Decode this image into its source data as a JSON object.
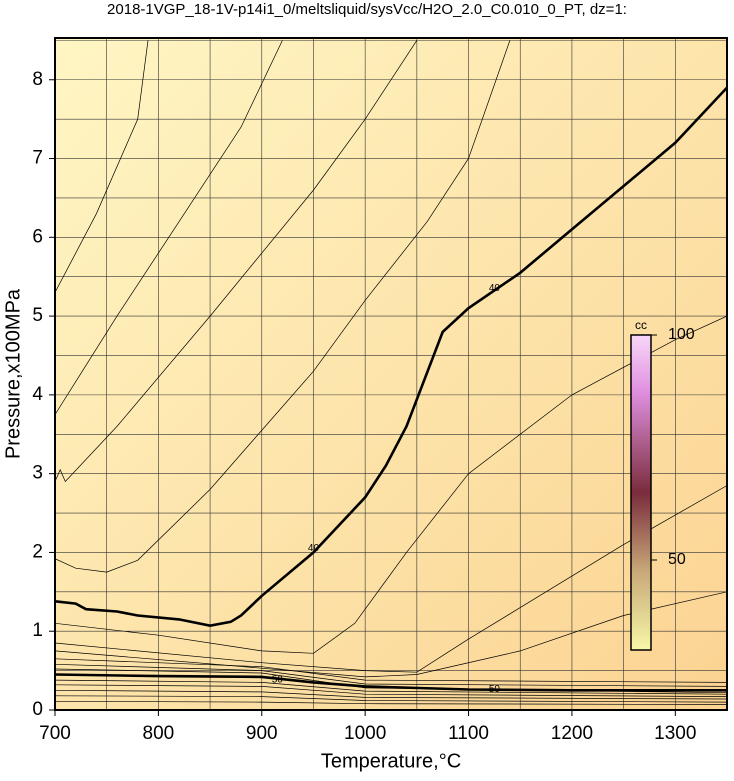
{
  "chart_data": {
    "type": "contour",
    "title": "2018-1VGP_18-1V-p14i1_0/meltsliquid/sysVcc/H2O_2.0_C0.010_0_PT, dz=1:",
    "x_label": "Temperature,°C",
    "y_label": "Pressure,x100MPa",
    "xlim": [
      700,
      1350
    ],
    "ylim": [
      0,
      8.53
    ],
    "xticks": [
      700,
      800,
      900,
      1000,
      1100,
      1200,
      1300
    ],
    "yticks": [
      0,
      1,
      2,
      3,
      4,
      5,
      6,
      7,
      8
    ],
    "x_grid": [
      700,
      750,
      800,
      850,
      900,
      950,
      1000,
      1050,
      1100,
      1150,
      1200,
      1250,
      1300,
      1350
    ],
    "y_grid": [
      0,
      0.5,
      1,
      1.5,
      2,
      2.5,
      3,
      3.5,
      4,
      4.5,
      5,
      5.5,
      6,
      6.5,
      7,
      7.5,
      8,
      8.5
    ],
    "grid": true,
    "contours": [
      {
        "x": [
          700,
          720,
          730,
          760,
          780,
          820,
          850,
          870,
          880,
          900,
          950,
          1000,
          1020,
          1040,
          1075,
          1100,
          1150,
          1200,
          1300,
          1350
        ],
        "y": [
          1.38,
          1.35,
          1.28,
          1.25,
          1.2,
          1.15,
          1.07,
          1.12,
          1.2,
          1.45,
          2.0,
          2.7,
          3.1,
          3.6,
          4.8,
          5.1,
          5.55,
          6.1,
          7.2,
          7.9
        ],
        "bold": true
      },
      {
        "x": [
          700,
          800,
          900,
          950,
          1000,
          1100,
          1200,
          1350
        ],
        "y": [
          0.45,
          0.43,
          0.42,
          0.35,
          0.3,
          0.26,
          0.25,
          0.25
        ],
        "bold": true
      },
      {
        "x": [
          700,
          740,
          780,
          790
        ],
        "y": [
          5.3,
          6.3,
          7.5,
          8.5
        ],
        "bold": false
      },
      {
        "x": [
          700,
          760,
          820,
          880,
          920
        ],
        "y": [
          3.75,
          5.0,
          6.2,
          7.4,
          8.5
        ],
        "bold": false
      },
      {
        "x": [
          700,
          705,
          710,
          760,
          850,
          950,
          1000,
          1050
        ],
        "y": [
          2.9,
          3.05,
          2.9,
          3.6,
          5.0,
          6.6,
          7.5,
          8.5
        ],
        "bold": false
      },
      {
        "x": [
          700,
          720,
          750,
          780,
          850,
          950,
          1000,
          1060,
          1100,
          1140
        ],
        "y": [
          1.92,
          1.8,
          1.75,
          1.9,
          2.8,
          4.3,
          5.2,
          6.2,
          7.0,
          8.5
        ],
        "bold": false
      },
      {
        "x": [
          700,
          800,
          900,
          950,
          990,
          1040,
          1100,
          1200,
          1300,
          1350
        ],
        "y": [
          1.1,
          0.95,
          0.75,
          0.72,
          1.1,
          2.0,
          3.0,
          4.0,
          4.7,
          5.0
        ],
        "bold": false
      },
      {
        "x": [
          700,
          900,
          1000,
          1050,
          1100,
          1150,
          1250,
          1350
        ],
        "y": [
          0.85,
          0.6,
          0.5,
          0.48,
          0.9,
          1.3,
          2.1,
          2.85
        ],
        "bold": false
      },
      {
        "x": [
          700,
          1000,
          1050,
          1150,
          1250,
          1350
        ],
        "y": [
          0.75,
          0.42,
          0.45,
          0.75,
          1.2,
          1.5
        ],
        "bold": false
      },
      {
        "x": [
          700,
          900,
          1000,
          1350
        ],
        "y": [
          0.65,
          0.55,
          0.38,
          0.35
        ],
        "bold": false
      },
      {
        "x": [
          700,
          900,
          1000,
          1350
        ],
        "y": [
          0.58,
          0.5,
          0.33,
          0.3
        ],
        "bold": false
      },
      {
        "x": [
          700,
          900,
          1000,
          1350
        ],
        "y": [
          0.52,
          0.47,
          0.28,
          0.22
        ],
        "bold": false
      },
      {
        "x": [
          700,
          900,
          1000,
          1350
        ],
        "y": [
          0.38,
          0.35,
          0.24,
          0.2
        ],
        "bold": false
      },
      {
        "x": [
          700,
          900,
          1000,
          1350
        ],
        "y": [
          0.32,
          0.3,
          0.2,
          0.17
        ],
        "bold": false
      },
      {
        "x": [
          700,
          900,
          1000,
          1350
        ],
        "y": [
          0.25,
          0.23,
          0.16,
          0.14
        ],
        "bold": false
      },
      {
        "x": [
          700,
          900,
          1000,
          1350
        ],
        "y": [
          0.18,
          0.17,
          0.12,
          0.1
        ],
        "bold": false
      },
      {
        "x": [
          700,
          900,
          1000,
          1350
        ],
        "y": [
          0.11,
          0.1,
          0.08,
          0.07
        ],
        "bold": false
      }
    ],
    "contour_labels": [
      {
        "text": "40",
        "x": 950,
        "y": 2.05
      },
      {
        "text": "40",
        "x": 1125,
        "y": 5.35
      },
      {
        "text": "50",
        "x": 915,
        "y": 0.38
      },
      {
        "text": "50",
        "x": 1125,
        "y": 0.26
      }
    ],
    "colorbar": {
      "label": "cc",
      "clim": [
        30,
        100
      ],
      "ticks": [
        50,
        100
      ]
    }
  }
}
